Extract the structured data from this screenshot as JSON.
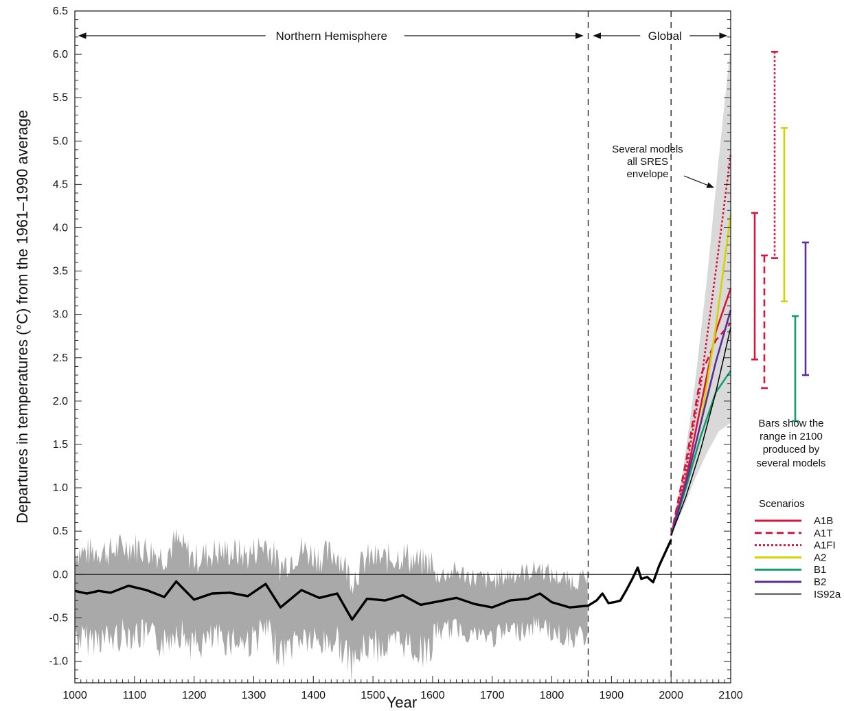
{
  "chart_data": {
    "type": "line",
    "xlabel": "Year",
    "ylabel": "Departures in temperatures (°C) from the 1961–1990 average",
    "xlim": [
      1000,
      2100
    ],
    "ylim": [
      -1.25,
      6.5
    ],
    "x_ticks": [
      1000,
      1100,
      1200,
      1300,
      1400,
      1500,
      1600,
      1700,
      1800,
      1900,
      2000,
      2100
    ],
    "y_ticks": [
      6.5,
      6.0,
      5.5,
      5.0,
      4.5,
      4.0,
      3.5,
      3.0,
      2.5,
      2.0,
      1.5,
      1.0,
      0.5,
      0.0,
      -0.5,
      -1.0
    ],
    "y_tick_labels": [
      "6.5",
      "6.0",
      "5.5",
      "5.0",
      "4.5",
      "4.0",
      "3.5",
      "3.0",
      "2.5",
      "2.0",
      "1.5",
      "1.0",
      "0.5",
      "0.0",
      "-0.5",
      "-1.0"
    ],
    "grid": false,
    "zero_line": true,
    "period_dividers": [
      1861,
      2000
    ],
    "period_labels": {
      "northern_hemisphere": "Northern Hemisphere",
      "global": "Global"
    },
    "annotations": {
      "envelope_line1": "Several models",
      "envelope_line2": "all SRES",
      "envelope_line3": "envelope",
      "bars_line1": "Bars show the",
      "bars_line2": "range in 2100",
      "bars_line3": "produced by",
      "bars_line4": "several models"
    },
    "legend_title": "Scenarios",
    "colors": {
      "A1B": "#d7143c",
      "A1T": "#d7143c",
      "A1FI": "#d7143c",
      "A2": "#d4d300",
      "B1": "#10a06e",
      "B2": "#5a2e9a",
      "IS92a": "#000000",
      "observed": "#000000",
      "uncertainty": "#a9a9a9",
      "envelope": "#d9d9d9"
    },
    "series": [
      {
        "name": "Northern Hemisphere (smoothed)",
        "x": [
          1000,
          1020,
          1040,
          1060,
          1090,
          1120,
          1150,
          1170,
          1200,
          1230,
          1260,
          1290,
          1320,
          1345,
          1380,
          1410,
          1440,
          1465,
          1490,
          1520,
          1550,
          1580,
          1610,
          1640,
          1670,
          1700,
          1730,
          1760,
          1780,
          1800,
          1830,
          1861
        ],
        "y": [
          -0.19,
          -0.22,
          -0.19,
          -0.21,
          -0.13,
          -0.18,
          -0.26,
          -0.08,
          -0.29,
          -0.22,
          -0.21,
          -0.25,
          -0.11,
          -0.38,
          -0.18,
          -0.27,
          -0.22,
          -0.52,
          -0.28,
          -0.3,
          -0.24,
          -0.35,
          -0.31,
          -0.27,
          -0.34,
          -0.38,
          -0.3,
          -0.28,
          -0.22,
          -0.32,
          -0.38,
          -0.36
        ]
      },
      {
        "name": "Global (observed)",
        "x": [
          1861,
          1875,
          1885,
          1895,
          1905,
          1915,
          1925,
          1935,
          1944,
          1950,
          1960,
          1970,
          1980,
          1990,
          2000
        ],
        "y": [
          -0.36,
          -0.3,
          -0.22,
          -0.33,
          -0.32,
          -0.3,
          -0.18,
          -0.05,
          0.08,
          -0.05,
          -0.03,
          -0.09,
          0.1,
          0.25,
          0.4
        ]
      },
      {
        "name": "A1B",
        "style": "solid",
        "x": [
          2000,
          2025,
          2050,
          2075,
          2100
        ],
        "y": [
          0.45,
          1.1,
          1.95,
          2.8,
          3.3
        ]
      },
      {
        "name": "A1T",
        "style": "dashed",
        "x": [
          2000,
          2025,
          2050,
          2075,
          2100
        ],
        "y": [
          0.45,
          1.3,
          2.3,
          2.7,
          2.9
        ]
      },
      {
        "name": "A1FI",
        "style": "dotted",
        "x": [
          2000,
          2025,
          2050,
          2075,
          2100
        ],
        "y": [
          0.45,
          1.2,
          2.2,
          3.5,
          4.85
        ]
      },
      {
        "name": "A2",
        "style": "solid",
        "x": [
          2000,
          2025,
          2050,
          2075,
          2100
        ],
        "y": [
          0.45,
          1.05,
          1.75,
          2.85,
          4.15
        ]
      },
      {
        "name": "B1",
        "style": "solid",
        "x": [
          2000,
          2025,
          2050,
          2075,
          2100
        ],
        "y": [
          0.45,
          1.0,
          1.6,
          2.1,
          2.35
        ]
      },
      {
        "name": "B2",
        "style": "solid",
        "x": [
          2000,
          2025,
          2050,
          2075,
          2100
        ],
        "y": [
          0.45,
          1.05,
          1.75,
          2.45,
          3.05
        ]
      },
      {
        "name": "IS92a",
        "style": "solid",
        "x": [
          2000,
          2025,
          2050,
          2075,
          2100
        ],
        "y": [
          0.45,
          0.9,
          1.45,
          2.1,
          2.85
        ]
      }
    ],
    "uncertainty_band": {
      "x_range": [
        1000,
        1861
      ],
      "upper_approx": 0.3,
      "lower_approx": -0.75
    },
    "envelope": {
      "x": [
        2000,
        2020,
        2040,
        2060,
        2080,
        2100
      ],
      "upper": [
        0.45,
        1.2,
        2.2,
        3.4,
        4.8,
        6.1
      ],
      "lower": [
        0.45,
        0.75,
        1.1,
        1.4,
        1.65,
        1.75
      ]
    },
    "range_bars_2100": [
      {
        "name": "A1B",
        "style": "solid",
        "low": 2.48,
        "high": 4.17
      },
      {
        "name": "A1T",
        "style": "dashed",
        "low": 2.15,
        "high": 3.68
      },
      {
        "name": "A1FI",
        "style": "dotted",
        "low": 3.65,
        "high": 6.03
      },
      {
        "name": "A2",
        "style": "solid",
        "low": 3.15,
        "high": 5.15
      },
      {
        "name": "B1",
        "style": "solid",
        "low": 1.77,
        "high": 2.98
      },
      {
        "name": "B2",
        "style": "solid",
        "low": 2.3,
        "high": 3.83
      }
    ],
    "legend": [
      "A1B",
      "A1T",
      "A1FI",
      "A2",
      "B1",
      "B2",
      "IS92a"
    ]
  }
}
